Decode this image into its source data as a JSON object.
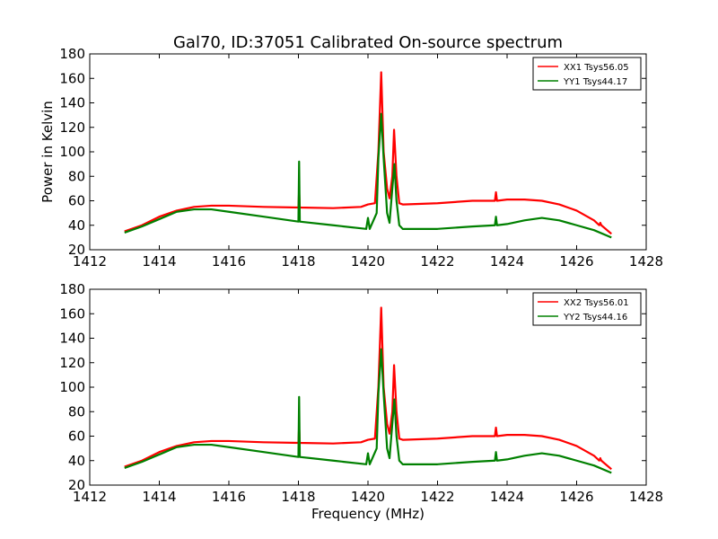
{
  "figure": {
    "title": "Gal70, ID:37051 Calibrated On-source spectrum"
  },
  "chart_data": [
    {
      "type": "line",
      "title": "Gal70, ID:37051 Calibrated On-source spectrum",
      "xlabel": "",
      "ylabel": "Power in Kelvin",
      "xlim": [
        1412,
        1428
      ],
      "ylim": [
        20,
        180
      ],
      "xticks": [
        1412,
        1414,
        1416,
        1418,
        1420,
        1422,
        1424,
        1426,
        1428
      ],
      "yticks": [
        20,
        40,
        60,
        80,
        100,
        120,
        140,
        160,
        180
      ],
      "grid": false,
      "legend_position": "top-right",
      "series": [
        {
          "name": "XX1 Tsys56.05",
          "color": "#ff0000",
          "points": [
            [
              1413,
              35
            ],
            [
              1413.5,
              40
            ],
            [
              1414,
              47
            ],
            [
              1414.5,
              52
            ],
            [
              1415,
              55
            ],
            [
              1415.5,
              56
            ],
            [
              1416,
              56
            ],
            [
              1417,
              55
            ],
            [
              1418,
              54.5
            ],
            [
              1418.02,
              68
            ],
            [
              1418.04,
              54.5
            ],
            [
              1419,
              54
            ],
            [
              1419.8,
              55
            ],
            [
              1420,
              57
            ],
            [
              1420.2,
              58
            ],
            [
              1420.3,
              100
            ],
            [
              1420.38,
              165
            ],
            [
              1420.45,
              100
            ],
            [
              1420.55,
              70
            ],
            [
              1420.62,
              62
            ],
            [
              1420.7,
              80
            ],
            [
              1420.75,
              118
            ],
            [
              1420.82,
              80
            ],
            [
              1420.9,
              58
            ],
            [
              1421,
              57
            ],
            [
              1422,
              58
            ],
            [
              1423,
              60
            ],
            [
              1423.65,
              60
            ],
            [
              1423.68,
              67
            ],
            [
              1423.71,
              60
            ],
            [
              1424,
              61
            ],
            [
              1424.5,
              61
            ],
            [
              1425,
              60
            ],
            [
              1425.5,
              57
            ],
            [
              1426,
              52
            ],
            [
              1426.5,
              44
            ],
            [
              1426.65,
              40
            ],
            [
              1426.68,
              42
            ],
            [
              1426.71,
              40
            ],
            [
              1427,
              33
            ]
          ]
        },
        {
          "name": "YY1 Tsys44.17",
          "color": "#008000",
          "points": [
            [
              1413,
              34
            ],
            [
              1413.5,
              39
            ],
            [
              1414,
              45
            ],
            [
              1414.5,
              51
            ],
            [
              1415,
              53
            ],
            [
              1415.5,
              53
            ],
            [
              1416,
              51
            ],
            [
              1417,
              47
            ],
            [
              1418,
              43
            ],
            [
              1418.02,
              92
            ],
            [
              1418.04,
              43
            ],
            [
              1419,
              40
            ],
            [
              1419.95,
              37
            ],
            [
              1420,
              46
            ],
            [
              1420.05,
              37
            ],
            [
              1420.25,
              50
            ],
            [
              1420.3,
              95
            ],
            [
              1420.38,
              131
            ],
            [
              1420.45,
              95
            ],
            [
              1420.55,
              50
            ],
            [
              1420.62,
              42
            ],
            [
              1420.7,
              70
            ],
            [
              1420.76,
              90
            ],
            [
              1420.82,
              60
            ],
            [
              1420.9,
              40
            ],
            [
              1421,
              37
            ],
            [
              1422,
              37
            ],
            [
              1423,
              39
            ],
            [
              1423.65,
              40
            ],
            [
              1423.68,
              47
            ],
            [
              1423.71,
              40
            ],
            [
              1424,
              41
            ],
            [
              1424.5,
              44
            ],
            [
              1425,
              46
            ],
            [
              1425.5,
              44
            ],
            [
              1426,
              40
            ],
            [
              1426.5,
              36
            ],
            [
              1427,
              30
            ]
          ]
        }
      ]
    },
    {
      "type": "line",
      "title": "",
      "xlabel": "Frequency (MHz)",
      "ylabel": "",
      "xlim": [
        1412,
        1428
      ],
      "ylim": [
        20,
        180
      ],
      "xticks": [
        1412,
        1414,
        1416,
        1418,
        1420,
        1422,
        1424,
        1426,
        1428
      ],
      "yticks": [
        20,
        40,
        60,
        80,
        100,
        120,
        140,
        160,
        180
      ],
      "grid": false,
      "legend_position": "top-right",
      "series": [
        {
          "name": "XX2 Tsys56.01",
          "color": "#ff0000",
          "points": [
            [
              1413,
              35
            ],
            [
              1413.5,
              40
            ],
            [
              1414,
              47
            ],
            [
              1414.5,
              52
            ],
            [
              1415,
              55
            ],
            [
              1415.5,
              56
            ],
            [
              1416,
              56
            ],
            [
              1417,
              55
            ],
            [
              1418,
              54.5
            ],
            [
              1418.02,
              68
            ],
            [
              1418.04,
              54.5
            ],
            [
              1419,
              54
            ],
            [
              1419.8,
              55
            ],
            [
              1420,
              57
            ],
            [
              1420.2,
              58
            ],
            [
              1420.3,
              100
            ],
            [
              1420.38,
              165
            ],
            [
              1420.45,
              100
            ],
            [
              1420.55,
              70
            ],
            [
              1420.62,
              62
            ],
            [
              1420.7,
              80
            ],
            [
              1420.75,
              118
            ],
            [
              1420.82,
              80
            ],
            [
              1420.9,
              58
            ],
            [
              1421,
              57
            ],
            [
              1422,
              58
            ],
            [
              1423,
              60
            ],
            [
              1423.65,
              60
            ],
            [
              1423.68,
              67
            ],
            [
              1423.71,
              60
            ],
            [
              1424,
              61
            ],
            [
              1424.5,
              61
            ],
            [
              1425,
              60
            ],
            [
              1425.5,
              57
            ],
            [
              1426,
              52
            ],
            [
              1426.5,
              44
            ],
            [
              1426.65,
              40
            ],
            [
              1426.68,
              42
            ],
            [
              1426.71,
              40
            ],
            [
              1427,
              33
            ]
          ]
        },
        {
          "name": "YY2 Tsys44.16",
          "color": "#008000",
          "points": [
            [
              1413,
              34
            ],
            [
              1413.5,
              39
            ],
            [
              1414,
              45
            ],
            [
              1414.5,
              51
            ],
            [
              1415,
              53
            ],
            [
              1415.5,
              53
            ],
            [
              1416,
              51
            ],
            [
              1417,
              47
            ],
            [
              1418,
              43
            ],
            [
              1418.02,
              92
            ],
            [
              1418.04,
              43
            ],
            [
              1419,
              40
            ],
            [
              1419.95,
              37
            ],
            [
              1420,
              46
            ],
            [
              1420.05,
              37
            ],
            [
              1420.25,
              50
            ],
            [
              1420.3,
              95
            ],
            [
              1420.38,
              131
            ],
            [
              1420.45,
              95
            ],
            [
              1420.55,
              50
            ],
            [
              1420.62,
              42
            ],
            [
              1420.7,
              70
            ],
            [
              1420.76,
              90
            ],
            [
              1420.82,
              60
            ],
            [
              1420.9,
              40
            ],
            [
              1421,
              37
            ],
            [
              1422,
              37
            ],
            [
              1423,
              39
            ],
            [
              1423.65,
              40
            ],
            [
              1423.68,
              47
            ],
            [
              1423.71,
              40
            ],
            [
              1424,
              41
            ],
            [
              1424.5,
              44
            ],
            [
              1425,
              46
            ],
            [
              1425.5,
              44
            ],
            [
              1426,
              40
            ],
            [
              1426.5,
              36
            ],
            [
              1427,
              30
            ]
          ]
        }
      ]
    }
  ]
}
